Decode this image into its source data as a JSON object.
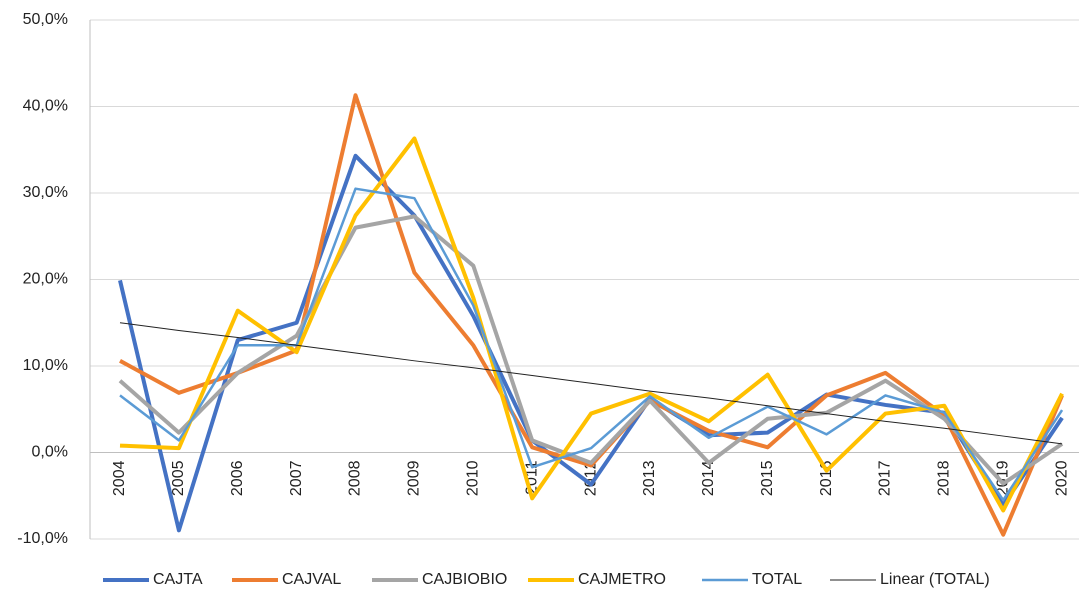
{
  "chart_data": {
    "type": "line",
    "categories": [
      "2004",
      "2005",
      "2006",
      "2007",
      "2008",
      "2009",
      "2010",
      "2011",
      "2012",
      "2013",
      "2014",
      "2015",
      "2016",
      "2017",
      "2018",
      "2019",
      "2020"
    ],
    "series": [
      {
        "name": "CAJTA",
        "color": "#4472c4",
        "width": 4,
        "values": [
          19.9,
          -9.0,
          13.0,
          15.0,
          34.3,
          27.4,
          15.8,
          1.4,
          -3.7,
          6.2,
          2.0,
          2.3,
          6.7,
          5.5,
          4.6,
          -6.1,
          4.0
        ]
      },
      {
        "name": "CAJVAL",
        "color": "#ed7d31",
        "width": 4,
        "values": [
          10.6,
          6.9,
          9.2,
          11.8,
          41.3,
          20.8,
          12.4,
          0.6,
          -1.5,
          6.0,
          2.5,
          0.6,
          6.6,
          9.2,
          4.3,
          -9.5,
          6.6
        ]
      },
      {
        "name": "CAJBIOBIO",
        "color": "#a5a5a5",
        "width": 4,
        "values": [
          8.3,
          2.3,
          9.2,
          13.5,
          26.0,
          27.3,
          21.6,
          1.4,
          -1.2,
          6.0,
          -1.2,
          3.9,
          4.6,
          8.3,
          3.9,
          -3.6,
          1.0
        ]
      },
      {
        "name": "CAJMETRO",
        "color": "#ffc000",
        "width": 4,
        "values": [
          0.8,
          0.5,
          16.4,
          11.6,
          27.4,
          36.3,
          17.9,
          -5.3,
          4.5,
          6.8,
          3.6,
          9.0,
          -2.1,
          4.5,
          5.4,
          -6.7,
          6.8
        ]
      },
      {
        "name": "TOTAL",
        "color": "#5b9bd5",
        "width": 2.5,
        "values": [
          6.6,
          1.4,
          12.4,
          12.4,
          30.5,
          29.4,
          17.0,
          -1.7,
          0.5,
          6.5,
          1.7,
          5.3,
          2.1,
          6.6,
          4.6,
          -5.5,
          4.9
        ]
      },
      {
        "name": "Linear (TOTAL)",
        "color": "#222222",
        "width": 1,
        "values": [
          15.0,
          14.1,
          13.3,
          12.4,
          11.5,
          10.6,
          9.8,
          8.9,
          8.0,
          7.1,
          6.3,
          5.4,
          4.5,
          3.6,
          2.8,
          1.9,
          1.0
        ]
      }
    ],
    "ylim": [
      -10,
      50
    ],
    "yticks": [
      {
        "value": -10,
        "label": "-10,0%"
      },
      {
        "value": 0,
        "label": "0,0%"
      },
      {
        "value": 10,
        "label": "10,0%"
      },
      {
        "value": 20,
        "label": "20,0%"
      },
      {
        "value": 30,
        "label": "30,0%"
      },
      {
        "value": 40,
        "label": "40,0%"
      },
      {
        "value": 50,
        "label": "50,0%"
      }
    ],
    "grid": true,
    "legend": "bottom"
  }
}
